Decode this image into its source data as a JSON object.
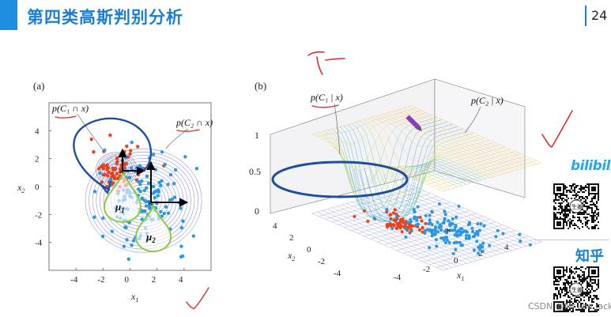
{
  "header": {
    "title": "第四类高斯判别分析",
    "page_number": "24",
    "accent": "#1e8fe0"
  },
  "panel_a": {
    "label": "(a)",
    "xlabel": "x",
    "xlabel_sub": "1",
    "ylabel": "x",
    "ylabel_sub": "2",
    "xticks": [
      "-4",
      "-2",
      "0",
      "2",
      "4"
    ],
    "yticks": [
      "4",
      "2",
      "0",
      "-2",
      "-4"
    ],
    "annotation_c1": "p(C₁ ∩ x)",
    "annotation_c2": "p(C₂ ∩ x)",
    "mu1": "μ",
    "mu1_sub": "1",
    "mu2": "μ",
    "mu2_sub": "2"
  },
  "panel_b": {
    "label": "(b)",
    "annotation_c1": "p(C₁ | x)",
    "annotation_c2": "p(C₂ | x)",
    "zticks": [
      "1",
      "0.5",
      "0"
    ],
    "x2ticks": [
      "4",
      "2",
      "0",
      "-2",
      "-4"
    ],
    "x1ticks": [
      "-4",
      "-2",
      "0",
      "2",
      "4"
    ],
    "x1label": "x",
    "x1label_sub": "1",
    "x2label": "x",
    "x2label_sub": "2"
  },
  "sidebar": {
    "bilibili_logo": "bilibili",
    "zhihu_logo": "知乎",
    "qr_center_label": "生姜"
  },
  "watermark": "CSDN @Mr.Lee jack",
  "colors": {
    "class1": "#e8421c",
    "class2": "#2b97e3",
    "contour": "#5560c0",
    "droplet": "#8fca3a",
    "ink_red": "#d83030",
    "ink_blue": "#1f4f9a"
  }
}
